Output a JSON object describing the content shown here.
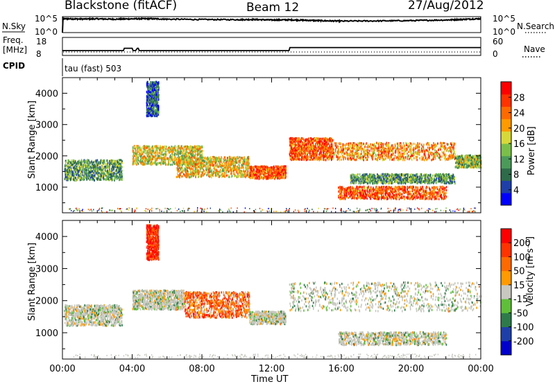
{
  "header": {
    "station": "Blackstone (fitACF)",
    "beam": "Beam 12",
    "date": "27/Aug/2012"
  },
  "top_panels": {
    "nsky_label": "N.Sky",
    "nsky_tick_top": "10^5",
    "nsky_tick_bottom": "10^0",
    "nsearch_label": "N.Search",
    "nsearch_tick_top": "10^5",
    "nsearch_tick_bottom": "10^0",
    "freq_label": "Freq.",
    "freq_unit": "[MHz]",
    "freq_tick_top": "18",
    "freq_tick_bottom": "8",
    "nave_label": "Nave",
    "nave_tick_top": "60",
    "nave_tick_bottom": "0",
    "cpid_label": "CPID",
    "cpid_text": "tau (fast) 503"
  },
  "chart_data": [
    {
      "type": "line",
      "name": "N.Sky",
      "ylim_log10": [
        0,
        5
      ],
      "x_hours": [
        0.0,
        0.03,
        0.1,
        1,
        2,
        3,
        4,
        5,
        6,
        8,
        10,
        11,
        12,
        13,
        14,
        15,
        16,
        18,
        20,
        22,
        23,
        24
      ],
      "y_log10": [
        0.0,
        4.3,
        4.35,
        4.25,
        4.3,
        4.2,
        4.3,
        4.35,
        4.2,
        4.1,
        4.05,
        4.1,
        3.95,
        4.0,
        3.85,
        3.7,
        3.6,
        3.65,
        3.75,
        3.95,
        4.15,
        4.35
      ]
    },
    {
      "type": "line",
      "name": "Freq.",
      "ylim": [
        8,
        18
      ],
      "x_hours": [
        0,
        3.5,
        3.55,
        4.0,
        4.05,
        4.2,
        4.3,
        4.35,
        4.4,
        13.0,
        13.05,
        24
      ],
      "y_mhz": [
        10.7,
        10.7,
        12.0,
        12.0,
        10.7,
        10.7,
        12.0,
        12.0,
        10.7,
        10.7,
        12.4,
        12.4
      ]
    },
    {
      "type": "heatmap",
      "title": "Power",
      "xlabel": "Time UT",
      "ylabel": "Slant Range [km]",
      "x_ticks": [
        "00:00",
        "04:00",
        "08:00",
        "12:00",
        "16:00",
        "20:00",
        "00:00"
      ],
      "y_ticks": [
        "1000",
        "2000",
        "3000",
        "4000"
      ],
      "xlim_hours": [
        0,
        24
      ],
      "ylim_km": [
        180,
        4500
      ],
      "colorbar_label": "Power [dB]",
      "colorbar_ticks": [
        "28",
        "24",
        "20",
        "16",
        "12",
        "8",
        "4"
      ],
      "colorbar_colors": [
        "#0000ff",
        "#1f3fa8",
        "#2e6b4a",
        "#4c9a5a",
        "#7bbf4a",
        "#d7d93a",
        "#ff9a00",
        "#ff6a00",
        "#ff3300",
        "#ff0000"
      ],
      "echo_bands": [
        {
          "t0": 0.1,
          "t1": 3.4,
          "r0": 1250,
          "r1": 1900,
          "level": 0.35
        },
        {
          "t0": 4.0,
          "t1": 8.0,
          "r0": 1750,
          "r1": 2350,
          "level": 0.55
        },
        {
          "t0": 6.5,
          "t1": 10.7,
          "r0": 1350,
          "r1": 2000,
          "level": 0.6
        },
        {
          "t0": 10.7,
          "t1": 12.8,
          "r0": 1300,
          "r1": 1700,
          "level": 0.8
        },
        {
          "t0": 13.0,
          "t1": 15.5,
          "r0": 1900,
          "r1": 2600,
          "level": 0.78
        },
        {
          "t0": 15.5,
          "t1": 22.5,
          "r0": 1900,
          "r1": 2450,
          "level": 0.7
        },
        {
          "t0": 22.5,
          "t1": 24.0,
          "r0": 1650,
          "r1": 2050,
          "level": 0.45
        },
        {
          "t0": 15.8,
          "t1": 22.0,
          "r0": 650,
          "r1": 1050,
          "level": 0.8
        },
        {
          "t0": 16.5,
          "t1": 22.5,
          "r0": 1150,
          "r1": 1450,
          "level": 0.35
        },
        {
          "t0": 4.8,
          "t1": 5.5,
          "r0": 3300,
          "r1": 4400,
          "level": 0.2
        }
      ]
    },
    {
      "type": "heatmap",
      "title": "Velocity",
      "xlabel": "Time UT",
      "ylabel": "Slant Range [km]",
      "x_ticks": [
        "00:00",
        "04:00",
        "08:00",
        "12:00",
        "16:00",
        "20:00",
        "00:00"
      ],
      "y_ticks": [
        "1000",
        "2000",
        "3000",
        "4000"
      ],
      "xlim_hours": [
        0,
        24
      ],
      "ylim_km": [
        180,
        4500
      ],
      "colorbar_label": "Velocity [m s⁻¹]",
      "colorbar_ticks": [
        "200",
        "100",
        "50",
        "15",
        "-15",
        "-50",
        "-100",
        "-200"
      ],
      "colorbar_colors": [
        "#0000cc",
        "#1f3fa8",
        "#2e7a4a",
        "#5fbf3a",
        "#c8c8c0",
        "#ff9a00",
        "#ff6a00",
        "#ff3300",
        "#ff0000"
      ],
      "echo_bands": [
        {
          "t0": 0.1,
          "t1": 3.4,
          "r0": 1250,
          "r1": 1900,
          "level": 0.45
        },
        {
          "t0": 4.0,
          "t1": 7.0,
          "r0": 1750,
          "r1": 2350,
          "level": 0.45
        },
        {
          "t0": 7.0,
          "t1": 10.7,
          "r0": 1500,
          "r1": 2300,
          "level": 0.72
        },
        {
          "t0": 10.7,
          "t1": 12.8,
          "r0": 1300,
          "r1": 1700,
          "level": 0.45
        },
        {
          "t0": 13.0,
          "t1": 24.0,
          "r0": 1700,
          "r1": 2600,
          "level": 0.45
        },
        {
          "t0": 15.8,
          "t1": 22.0,
          "r0": 650,
          "r1": 1050,
          "level": 0.45
        },
        {
          "t0": 4.8,
          "t1": 5.5,
          "r0": 3300,
          "r1": 4400,
          "level": 0.9
        }
      ]
    }
  ]
}
